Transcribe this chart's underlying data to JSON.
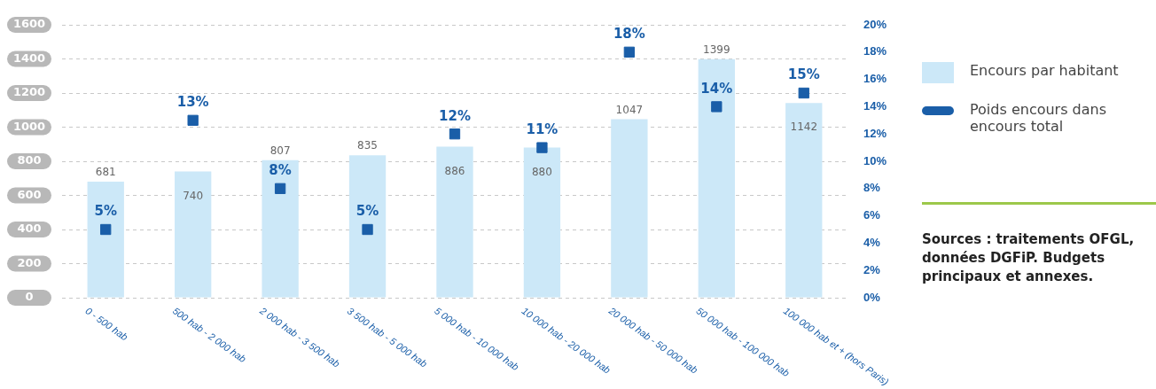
{
  "chart_data": {
    "type": "bar",
    "categories": [
      "0 - 500 hab",
      "500 hab - 2 000 hab",
      "2 000 hab - 3 500 hab",
      "3 500 hab - 5 000 hab",
      "5 000 hab - 10 000 hab",
      "10 000 hab - 20 000 hab",
      "20 000 hab - 50 000 hab",
      "50 000 hab - 100 000 hab",
      "100 000 hab et + (hors Paris)"
    ],
    "series": [
      {
        "name": "Encours par habitant",
        "type": "bar",
        "color": "#cce8f8",
        "values": [
          681,
          740,
          807,
          835,
          886,
          880,
          1047,
          1399,
          1142
        ]
      },
      {
        "name": "Poids encours dans encours total",
        "type": "scatter",
        "axis": "y2",
        "color": "#1a5ea8",
        "values": [
          5,
          13,
          8,
          5,
          12,
          11,
          18,
          14,
          15
        ],
        "value_labels": [
          "5%",
          "13%",
          "8%",
          "5%",
          "12%",
          "11%",
          "18%",
          "14%",
          "15%"
        ]
      }
    ],
    "ylim": [
      0,
      1600
    ],
    "yticks": [
      0,
      200,
      400,
      600,
      800,
      1000,
      1200,
      1400,
      1600
    ],
    "y2lim": [
      0,
      20
    ],
    "y2ticks": [
      {
        "value": 0,
        "label": "0%"
      },
      {
        "value": 2,
        "label": "2%"
      },
      {
        "value": 4,
        "label": "4%"
      },
      {
        "value": 6,
        "label": "6%"
      },
      {
        "value": 8,
        "label": "8%"
      },
      {
        "value": 10,
        "label": "10%"
      },
      {
        "value": 12,
        "label": "12%"
      },
      {
        "value": 14,
        "label": "14%"
      },
      {
        "value": 16,
        "label": "16%"
      },
      {
        "value": 18,
        "label": "18%"
      },
      {
        "value": 20,
        "label": "20%"
      }
    ],
    "grid": "y",
    "legend": "right",
    "marker": "square",
    "data_labels": true,
    "annotations": [
      "Sources : traitements OFGL, données DGFiP. Budgets principaux et annexes."
    ]
  }
}
